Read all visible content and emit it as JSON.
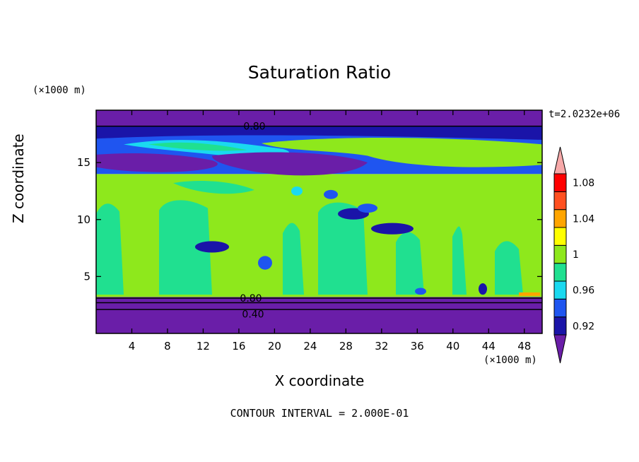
{
  "title": "Saturation Ratio",
  "x_unit": "(×1000 m)",
  "y_unit": "(×1000 m)",
  "timestamp": "t=2.0232e+06",
  "contour_interval": "CONTOUR INTERVAL = 2.000E-01",
  "chart_data": {
    "type": "heatmap",
    "title": "Saturation Ratio",
    "xlabel": "X coordinate",
    "ylabel": "Z coordinate",
    "xlim": [
      0,
      50
    ],
    "ylim": [
      0,
      19.6
    ],
    "x_ticks": [
      4,
      8,
      12,
      16,
      20,
      24,
      28,
      32,
      36,
      40,
      44,
      48
    ],
    "y_ticks": [
      5,
      10,
      15
    ],
    "colorbar": {
      "levels": [
        0.92,
        0.94,
        0.96,
        0.98,
        1.0,
        1.02,
        1.04,
        1.06,
        1.08,
        1.1
      ],
      "labels": [
        "0.92",
        "0.96",
        "1",
        "1.04",
        "1.08"
      ],
      "colors": [
        "#6a1ea8",
        "#1a14a8",
        "#1f55f0",
        "#1ad9f0",
        "#20e090",
        "#8ee81c",
        "#ffff00",
        "#ffa500",
        "#ff5020",
        "#ff0000",
        "#f7a9a9"
      ]
    },
    "contour_labels": [
      "0.80",
      "0.80",
      "0.40"
    ],
    "bands": [
      {
        "z": [
          0,
          3.2
        ],
        "value": 0.4,
        "color": "#6a1ea8"
      },
      {
        "z": [
          3.2,
          14
        ],
        "value": 1.0,
        "color": "#8ee81c"
      },
      {
        "z": [
          14,
          17.5
        ],
        "value": 0.95,
        "color": "#1f55f0"
      },
      {
        "z": [
          17.5,
          19.6
        ],
        "value": 0.8,
        "color": "#6a1ea8"
      }
    ]
  }
}
